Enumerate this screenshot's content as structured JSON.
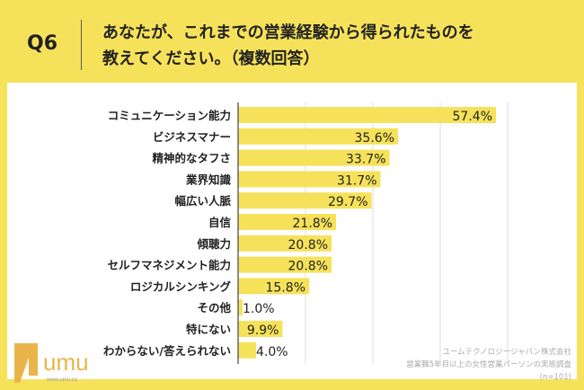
{
  "header": {
    "question": "Q6",
    "title_line1": "あなたが、これまでの営業経験から得られたものを",
    "title_line2": "教えてください。（複数回答）"
  },
  "footer": {
    "company": "ユームテクノロジージャパン株式会社",
    "survey": "営業職5年目以上の女性営業パーソンの実態調査",
    "n": "(n=101)",
    "logo_text": "umu",
    "logo_url": "www.umu.co"
  },
  "colors": {
    "bar": "#f6e25a",
    "background": "#f6e25a"
  },
  "chart_data": {
    "type": "bar",
    "orientation": "horizontal",
    "categories": [
      "コミュニケーション能力",
      "ビジネスマナー",
      "精神的なタフさ",
      "業界知識",
      "幅広い人脈",
      "自信",
      "傾聴力",
      "セルフマネジメント能力",
      "ロジカルシンキング",
      "その他",
      "特にない",
      "わからない/答えられない"
    ],
    "values": [
      57.4,
      35.6,
      33.7,
      31.7,
      29.7,
      21.8,
      20.8,
      20.8,
      15.8,
      1.0,
      9.9,
      4.0
    ],
    "labels": [
      "57.4%",
      "35.6%",
      "33.7%",
      "31.7%",
      "29.7%",
      "21.8%",
      "20.8%",
      "20.8%",
      "15.8%",
      "1.0%",
      "9.9%",
      "4.0%"
    ],
    "xlim": [
      0,
      75
    ],
    "grid": true,
    "unit": "%"
  }
}
